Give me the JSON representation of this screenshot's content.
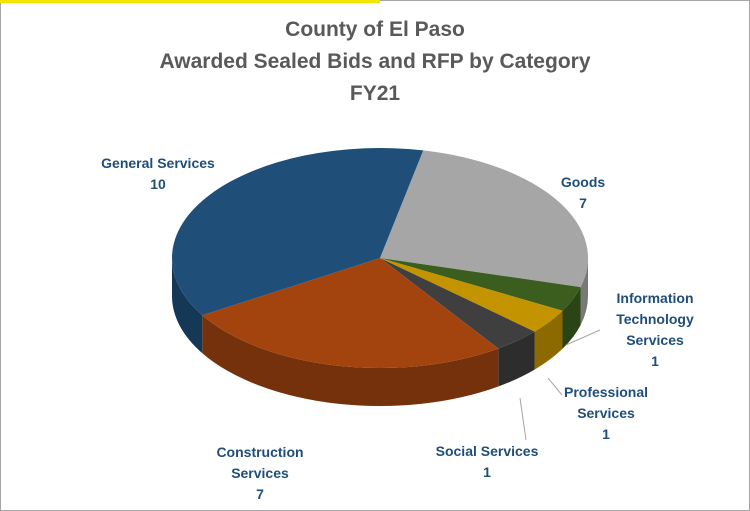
{
  "chart_data": {
    "type": "pie3d",
    "title": [
      "County of El Paso",
      "Awarded Sealed Bids and RFP by Category",
      "FY21"
    ],
    "categories": [
      "Goods",
      "Information Technology Services",
      "Professional Services",
      "Social Services",
      "Construction Services",
      "General Services"
    ],
    "values": [
      7,
      1,
      1,
      1,
      7,
      10
    ],
    "colors": [
      "#a6a6a6",
      "#3b5e1f",
      "#c49300",
      "#3f3f3f",
      "#a3440f",
      "#1f4e79"
    ]
  }
}
